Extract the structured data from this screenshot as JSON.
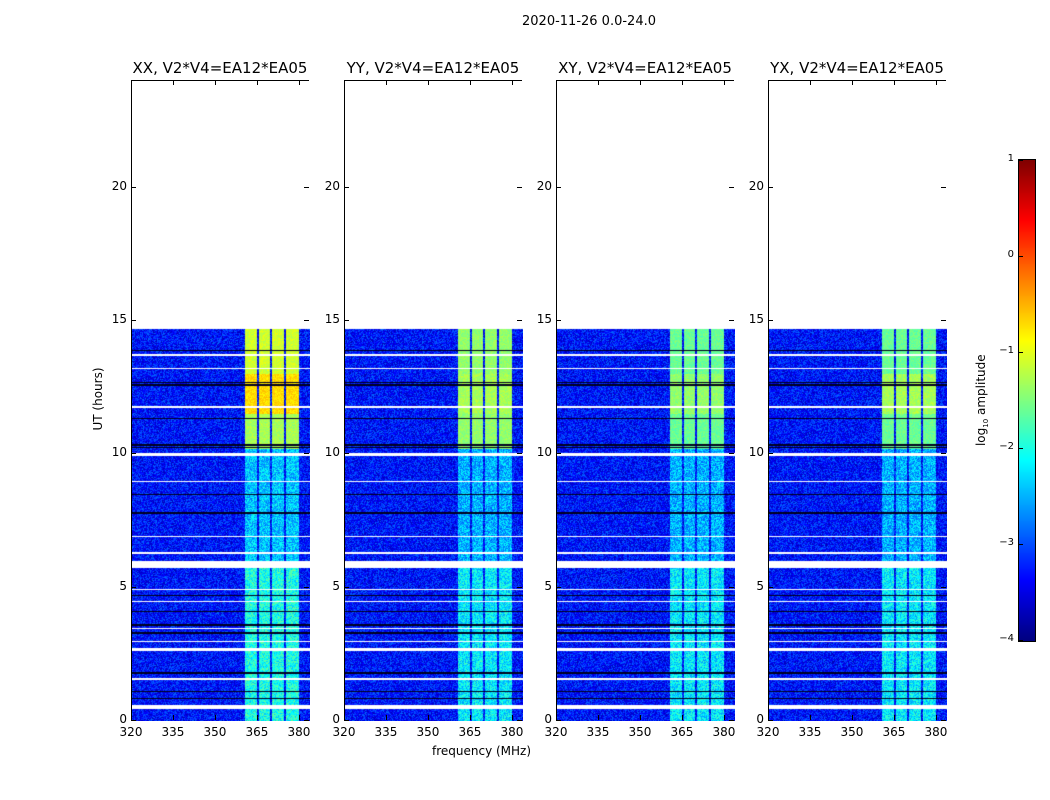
{
  "chart_data": {
    "type": "heatmap",
    "title": "2020-11-26 0.0-24.0",
    "xlabel": "frequency (MHz)",
    "ylabel": "UT (hours)",
    "xlim": [
      320,
      383.6
    ],
    "ylim": [
      0,
      24
    ],
    "xticks": [
      320,
      335,
      350,
      365,
      380
    ],
    "yticks": [
      0,
      5,
      10,
      15,
      20
    ],
    "data_time_range": [
      0,
      14.7
    ],
    "panels": [
      {
        "title": "XX, V2*V4=EA12*EA05",
        "background_log_amp": -3.3,
        "band_log_amp": {
          "0-5.8h": -2.0,
          "6-10h": -2.4,
          "10.3-11.5h": -1.3,
          "11.5-13h": -0.7,
          "13-14.7h": -1.1
        }
      },
      {
        "title": "YY, V2*V4=EA12*EA05",
        "background_log_amp": -3.3,
        "band_log_amp": {
          "0-5.8h": -2.2,
          "6-10h": -2.5,
          "10.3-11.5h": -1.4,
          "11.5-13h": -1.3,
          "13-14.7h": -1.4
        }
      },
      {
        "title": "XY, V2*V4=EA12*EA05",
        "background_log_amp": -3.3,
        "band_log_amp": {
          "0-5.8h": -2.2,
          "6-10h": -2.5,
          "10.3-11.5h": -1.6,
          "11.5-13h": -1.4,
          "13-14.7h": -1.6
        }
      },
      {
        "title": "YX, V2*V4=EA12*EA05",
        "background_log_amp": -3.3,
        "band_log_amp": {
          "0-5.8h": -2.2,
          "6-10h": -2.5,
          "10.3-11.5h": -1.6,
          "11.5-13h": -1.3,
          "13-14.7h": -1.6
        }
      }
    ],
    "band_subchannels_MHz": [
      [
        360.3,
        364.6
      ],
      [
        365.3,
        369.2
      ],
      [
        370.0,
        374.2
      ],
      [
        375.0,
        379.6
      ]
    ],
    "flagged_white_rows_h": [
      [
        0.45,
        0.6
      ],
      [
        1.55,
        1.6
      ],
      [
        2.62,
        2.72
      ],
      [
        2.95,
        3.0
      ],
      [
        3.45,
        3.5
      ],
      [
        4.45,
        4.5
      ],
      [
        4.9,
        4.95
      ],
      [
        5.75,
        6.0
      ],
      [
        6.25,
        6.32
      ],
      [
        6.9,
        6.95
      ],
      [
        8.95,
        9.0
      ],
      [
        9.92,
        10.05
      ],
      [
        11.75,
        11.8
      ],
      [
        13.2,
        13.25
      ],
      [
        13.7,
        13.78
      ]
    ],
    "flagged_dark_rows_h": [
      0.85,
      1.1,
      1.8,
      3.3,
      3.6,
      4.1,
      4.7,
      7.8,
      8.5,
      10.25,
      10.35,
      11.35,
      12.6,
      12.7,
      13.9
    ],
    "colorbar": {
      "label_prefix": "log",
      "label_sub": "10",
      "label_suffix": " amplitude",
      "range": [
        -4,
        1
      ],
      "ticks": [
        "1",
        "0",
        "−1",
        "−2",
        "−3",
        "−4"
      ],
      "colormap": "jet"
    }
  }
}
